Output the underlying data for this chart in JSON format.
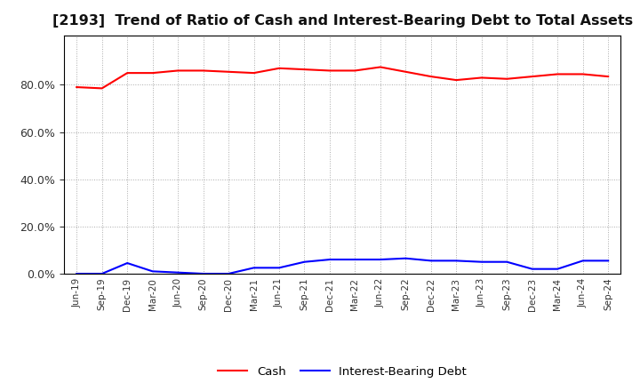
{
  "title": "[2193]  Trend of Ratio of Cash and Interest-Bearing Debt to Total Assets",
  "x_labels": [
    "Jun-19",
    "Sep-19",
    "Dec-19",
    "Mar-20",
    "Jun-20",
    "Sep-20",
    "Dec-20",
    "Mar-21",
    "Jun-21",
    "Sep-21",
    "Dec-21",
    "Mar-22",
    "Jun-22",
    "Sep-22",
    "Dec-22",
    "Mar-23",
    "Jun-23",
    "Sep-23",
    "Dec-23",
    "Mar-24",
    "Jun-24",
    "Sep-24"
  ],
  "cash": [
    79.0,
    78.5,
    85.0,
    85.0,
    86.0,
    86.0,
    85.5,
    85.0,
    87.0,
    86.5,
    86.0,
    86.0,
    87.5,
    85.5,
    83.5,
    82.0,
    83.0,
    82.5,
    83.5,
    84.5,
    84.5,
    83.5
  ],
  "ibd": [
    0.0,
    0.0,
    4.5,
    1.0,
    0.5,
    0.0,
    0.0,
    2.5,
    2.5,
    5.0,
    6.0,
    6.0,
    6.0,
    6.5,
    5.5,
    5.5,
    5.0,
    5.0,
    2.0,
    2.0,
    5.5,
    5.5
  ],
  "cash_color": "#FF0000",
  "ibd_color": "#0000FF",
  "ylim": [
    0,
    101
  ],
  "yticks": [
    0.0,
    20.0,
    40.0,
    60.0,
    80.0
  ],
  "background_color": "#FFFFFF",
  "plot_bg_color": "#FFFFFF",
  "grid_color": "#AAAAAA",
  "title_fontsize": 11.5,
  "legend_cash": "Cash",
  "legend_ibd": "Interest-Bearing Debt"
}
